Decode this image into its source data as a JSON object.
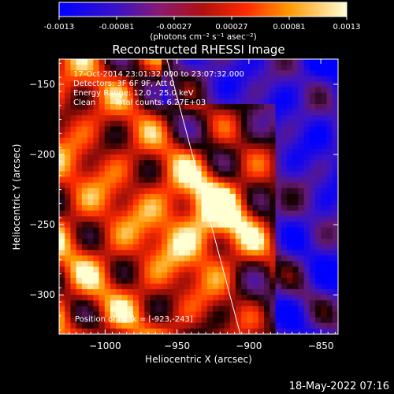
{
  "colorbar": {
    "tick_labels": [
      "-0.0013",
      "-0.00081",
      "-0.00027",
      "0.00027",
      "0.00081",
      "0.0013"
    ],
    "units_html": "(photons cm⁻² s⁻¹ asec⁻²)",
    "range": [
      -0.0013,
      0.0013
    ]
  },
  "chart_data": {
    "type": "heatmap",
    "title": "Reconstructed RHESSI Image",
    "xlabel": "Heliocentric X (arcsec)",
    "ylabel": "Heliocentric Y (arcsec)",
    "xlim": [
      -1032,
      -838
    ],
    "ylim": [
      -328,
      -132
    ],
    "x_ticks": [
      -1000,
      -950,
      -900,
      -850
    ],
    "y_ticks": [
      -150,
      -200,
      -250,
      -300
    ],
    "x_tick_labels": [
      "−1000",
      "−950",
      "−900",
      "−850"
    ],
    "y_tick_labels": [
      "−150",
      "−200",
      "−250",
      "−300"
    ],
    "annotations": {
      "time_range": "17-Oct-2014 23:01:32.000 to 23:07:32.000",
      "detectors": "Detectors: 3F 6F 9F, Att 0",
      "energy": "Energy Range: 12.0 - 25.0 keV",
      "clean": "Clean",
      "counts": "Total counts: 6.27E+03",
      "peak": "Position of Peak = [-923,-243]"
    },
    "peak": [
      -923,
      -243
    ],
    "limb_line": [
      [
        -957,
        -132
      ],
      [
        -906,
        -328
      ]
    ]
  },
  "footer": {
    "date": "18-May-2022 07:16"
  }
}
